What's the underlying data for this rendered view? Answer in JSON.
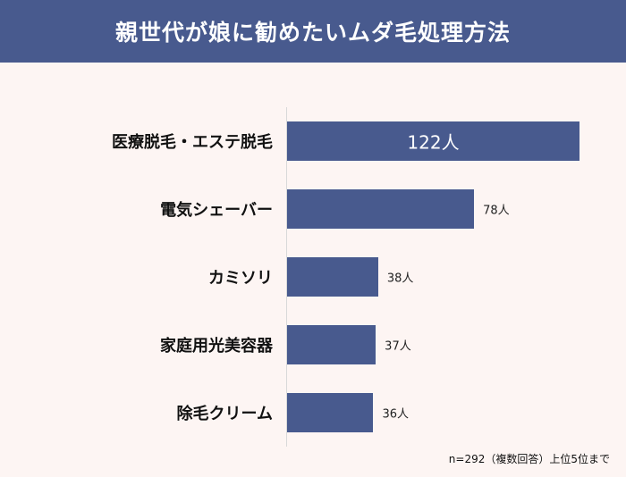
{
  "header": {
    "title": "親世代が娘に勧めたいムダ毛処理方法"
  },
  "chart_data": {
    "type": "bar",
    "orientation": "horizontal",
    "title": "親世代が娘に勧めたいムダ毛処理方法",
    "categories": [
      "医療脱毛・エステ脱毛",
      "電気シェーバー",
      "カミソリ",
      "家庭用光美容器",
      "除毛クリーム"
    ],
    "values": [
      122,
      78,
      38,
      37,
      36
    ],
    "value_labels": [
      "122人",
      "78人",
      "38人",
      "37人",
      "36人"
    ],
    "bar_color": "#485a8e",
    "xlim": [
      0,
      122
    ],
    "grid": false
  },
  "footnote": "n=292（複数回答）上位5位まで",
  "colors": {
    "header_bg": "#485a8e",
    "page_bg": "#fdf5f3",
    "bar": "#485a8e"
  }
}
